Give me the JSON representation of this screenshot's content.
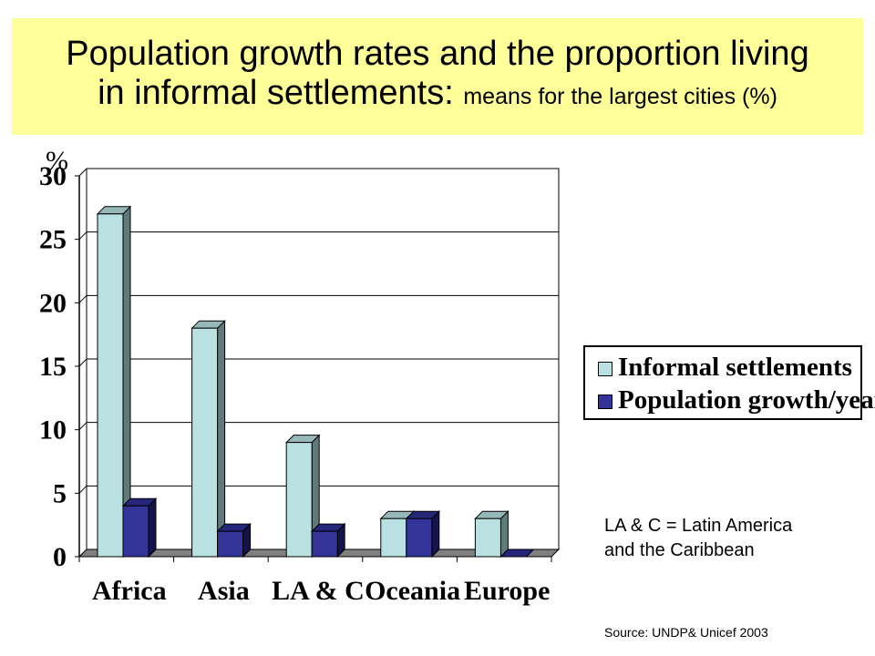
{
  "header": {
    "title_line1": "Population growth rates and the proportion living",
    "title_line2_main": "in informal settlements:",
    "title_line2_sub": "means for the largest cities (%)"
  },
  "chart_data": {
    "type": "bar",
    "ylabel": "%",
    "categories": [
      "Africa",
      "Asia",
      "LA & C",
      "Oceania",
      "Europe"
    ],
    "ylim": [
      0,
      30
    ],
    "yticks": [
      0,
      5,
      10,
      15,
      20,
      25,
      30
    ],
    "grid": true,
    "legend_position": "right",
    "series": [
      {
        "name": "Informal settlements",
        "values": [
          27,
          18,
          9,
          3,
          3
        ],
        "color": "#b9e1e1"
      },
      {
        "name": "Population growth/year",
        "values": [
          4,
          2,
          2,
          3,
          0
        ],
        "color": "#33339a"
      }
    ]
  },
  "note": {
    "line1": "LA & C = Latin America",
    "line2": "and the Caribbean"
  },
  "source": "Source: UNDP& Unicef 2003"
}
